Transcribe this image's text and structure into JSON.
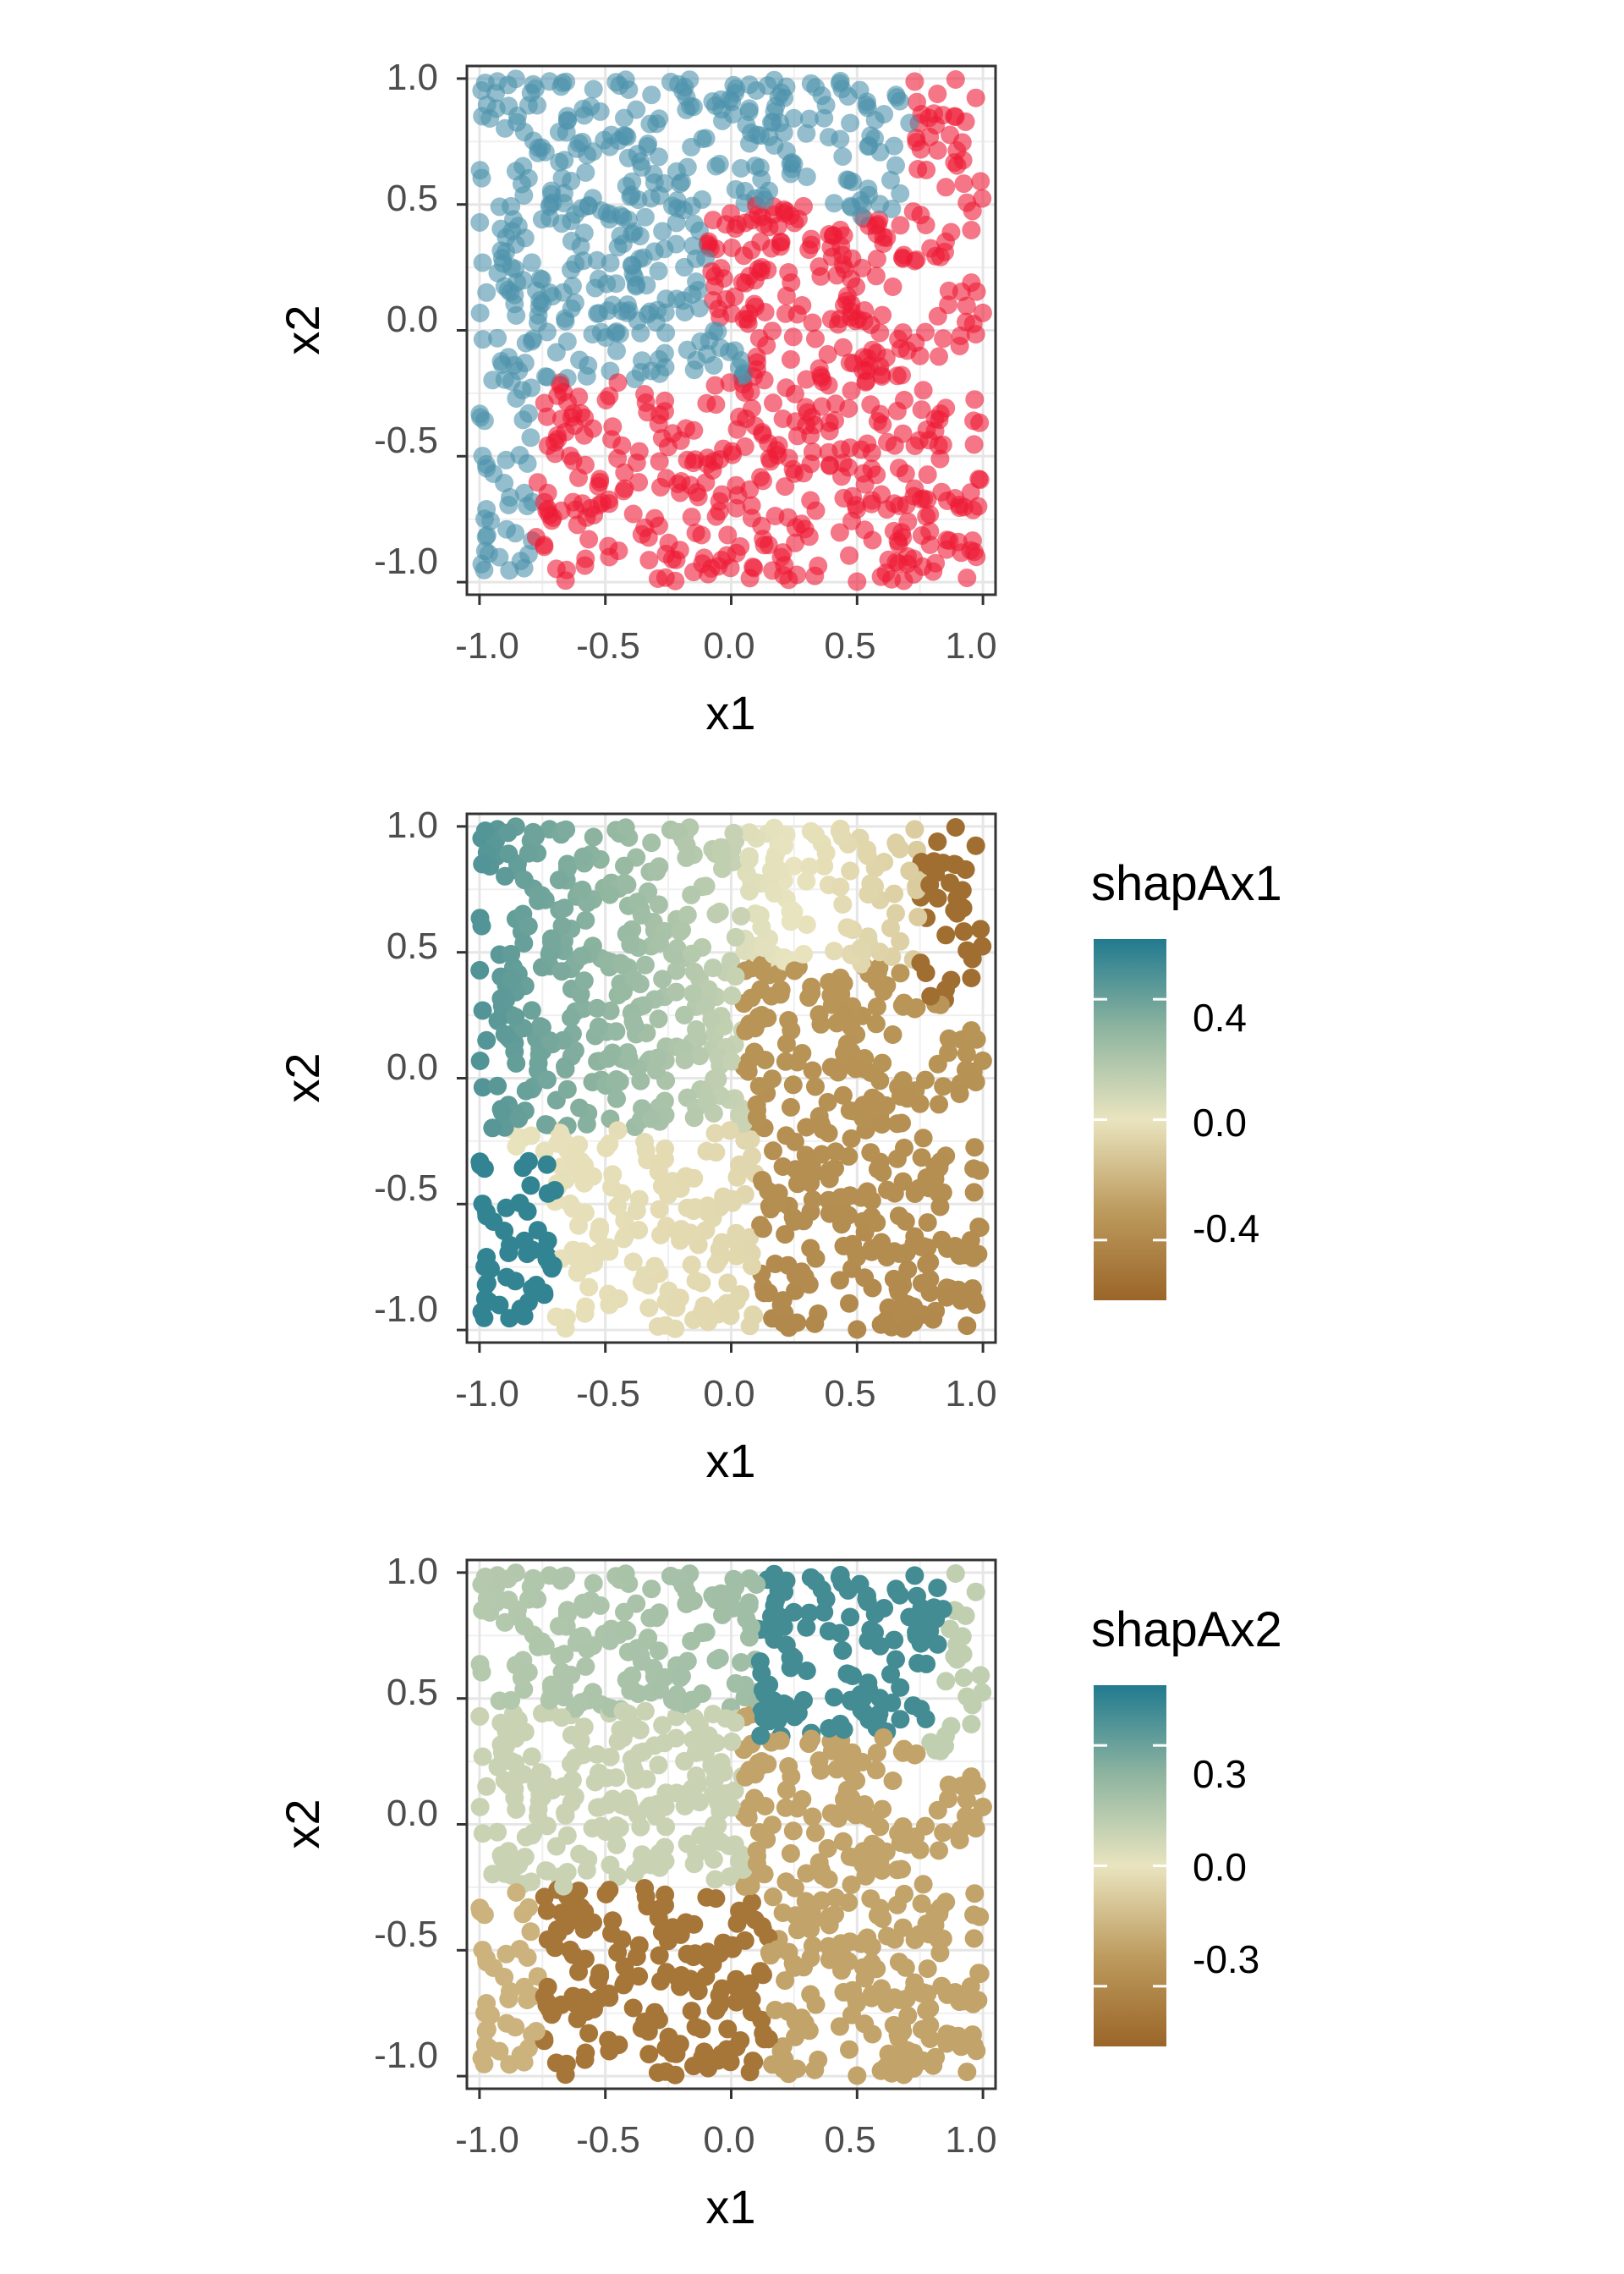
{
  "chart_data": [
    {
      "type": "scatter",
      "xlabel": "x1",
      "ylabel": "x2",
      "xlim": [
        -1.05,
        1.05
      ],
      "ylim": [
        -1.05,
        1.05
      ],
      "xticks": [
        -1.0,
        -0.5,
        0.0,
        0.5,
        1.0
      ],
      "yticks": [
        -1.0,
        -0.5,
        0.0,
        0.5,
        1.0
      ],
      "xtick_labels": [
        "-1.0",
        "-0.5",
        "0.0",
        "0.5",
        "1.0"
      ],
      "ytick_labels": [
        "-1.0",
        "-0.5",
        "0.0",
        "0.5",
        "1.0"
      ],
      "grid": true,
      "color_mode": "class",
      "class_colors": {
        "class-0": "#4d93ac",
        "class-1": "#ee1b36"
      },
      "point_count": 1000,
      "seed": 7,
      "point_alpha": 0.6
    },
    {
      "type": "scatter",
      "xlabel": "x1",
      "ylabel": "x2",
      "xlim": [
        -1.05,
        1.05
      ],
      "ylim": [
        -1.05,
        1.05
      ],
      "xticks": [
        -1.0,
        -0.5,
        0.0,
        0.5,
        1.0
      ],
      "yticks": [
        -1.0,
        -0.5,
        0.0,
        0.5,
        1.0
      ],
      "xtick_labels": [
        "-1.0",
        "-0.5",
        "0.0",
        "0.5",
        "1.0"
      ],
      "ytick_labels": [
        "-1.0",
        "-0.5",
        "0.0",
        "0.5",
        "1.0"
      ],
      "grid": true,
      "color_mode": "shapAx1",
      "point_count": 1000,
      "seed": 7,
      "point_alpha": 1.0,
      "legend": {
        "title": "shapAx1",
        "placement": "right",
        "range": [
          -0.6,
          0.6
        ],
        "ticks": [
          0.4,
          0.0,
          -0.4
        ],
        "tick_labels": [
          "0.4",
          "0.0",
          "-0.4"
        ],
        "colors": [
          "#9b6528",
          "#bd9b5e",
          "#e9e4bf",
          "#8fb5a0",
          "#217a8f"
        ]
      }
    },
    {
      "type": "scatter",
      "xlabel": "x1",
      "ylabel": "x2",
      "xlim": [
        -1.05,
        1.05
      ],
      "ylim": [
        -1.05,
        1.05
      ],
      "xticks": [
        -1.0,
        -0.5,
        0.0,
        0.5,
        1.0
      ],
      "yticks": [
        -1.0,
        -0.5,
        0.0,
        0.5,
        1.0
      ],
      "xtick_labels": [
        "-1.0",
        "-0.5",
        "0.0",
        "0.5",
        "1.0"
      ],
      "ytick_labels": [
        "-1.0",
        "-0.5",
        "0.0",
        "0.5",
        "1.0"
      ],
      "grid": true,
      "color_mode": "shapAx2",
      "point_count": 1000,
      "seed": 7,
      "point_alpha": 1.0,
      "legend": {
        "title": "shapAx2",
        "placement": "right",
        "range": [
          -0.45,
          0.45
        ],
        "ticks": [
          0.3,
          0.0,
          -0.3
        ],
        "tick_labels": [
          "0.3",
          "0.0",
          "-0.3"
        ],
        "colors": [
          "#9b6528",
          "#bd9b5e",
          "#e9e4bf",
          "#8fb5a0",
          "#217a8f"
        ]
      }
    }
  ]
}
